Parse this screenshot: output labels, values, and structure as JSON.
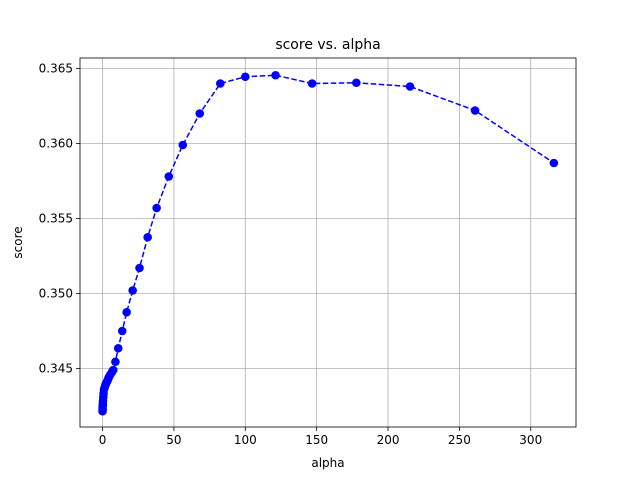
{
  "chart_data": {
    "type": "line",
    "title": "score vs. alpha",
    "xlabel": "alpha",
    "ylabel": "score",
    "xlim": [
      -15.8,
      331.7
    ],
    "ylim": [
      0.3411,
      0.3657
    ],
    "xticks": [
      0,
      50,
      100,
      150,
      200,
      250,
      300
    ],
    "yticks": [
      0.345,
      0.35,
      0.355,
      0.36,
      0.365
    ],
    "ytick_labels": [
      "0.345",
      "0.350",
      "0.355",
      "0.360",
      "0.365"
    ],
    "grid": true,
    "line_style": "dashed",
    "marker": "circle",
    "color": "#0000ff",
    "series": [
      {
        "x": [
          0.01,
          0.02,
          0.05,
          0.1,
          0.2,
          0.3,
          0.5,
          0.7,
          1.0,
          1.5,
          2.0,
          2.5,
          3.0,
          3.5,
          4.0,
          4.6,
          5.5,
          6.5,
          7.5,
          9.0,
          11.0,
          13.8,
          16.9,
          21.1,
          25.9,
          31.6,
          37.9,
          46.4,
          56.2,
          68.1,
          82.5,
          100.0,
          121.2,
          146.8,
          177.8,
          215.4,
          261.0,
          316.2
        ],
        "y": [
          0.34215,
          0.34225,
          0.34235,
          0.3425,
          0.34265,
          0.34285,
          0.3431,
          0.34335,
          0.3436,
          0.34375,
          0.3439,
          0.344,
          0.3441,
          0.3442,
          0.34432,
          0.34445,
          0.3446,
          0.34475,
          0.3449,
          0.34545,
          0.34635,
          0.3475,
          0.34875,
          0.3502,
          0.3517,
          0.35375,
          0.3557,
          0.3578,
          0.3599,
          0.362,
          0.364,
          0.36445,
          0.36455,
          0.364,
          0.36405,
          0.3638,
          0.3622,
          0.3587
        ]
      }
    ]
  }
}
